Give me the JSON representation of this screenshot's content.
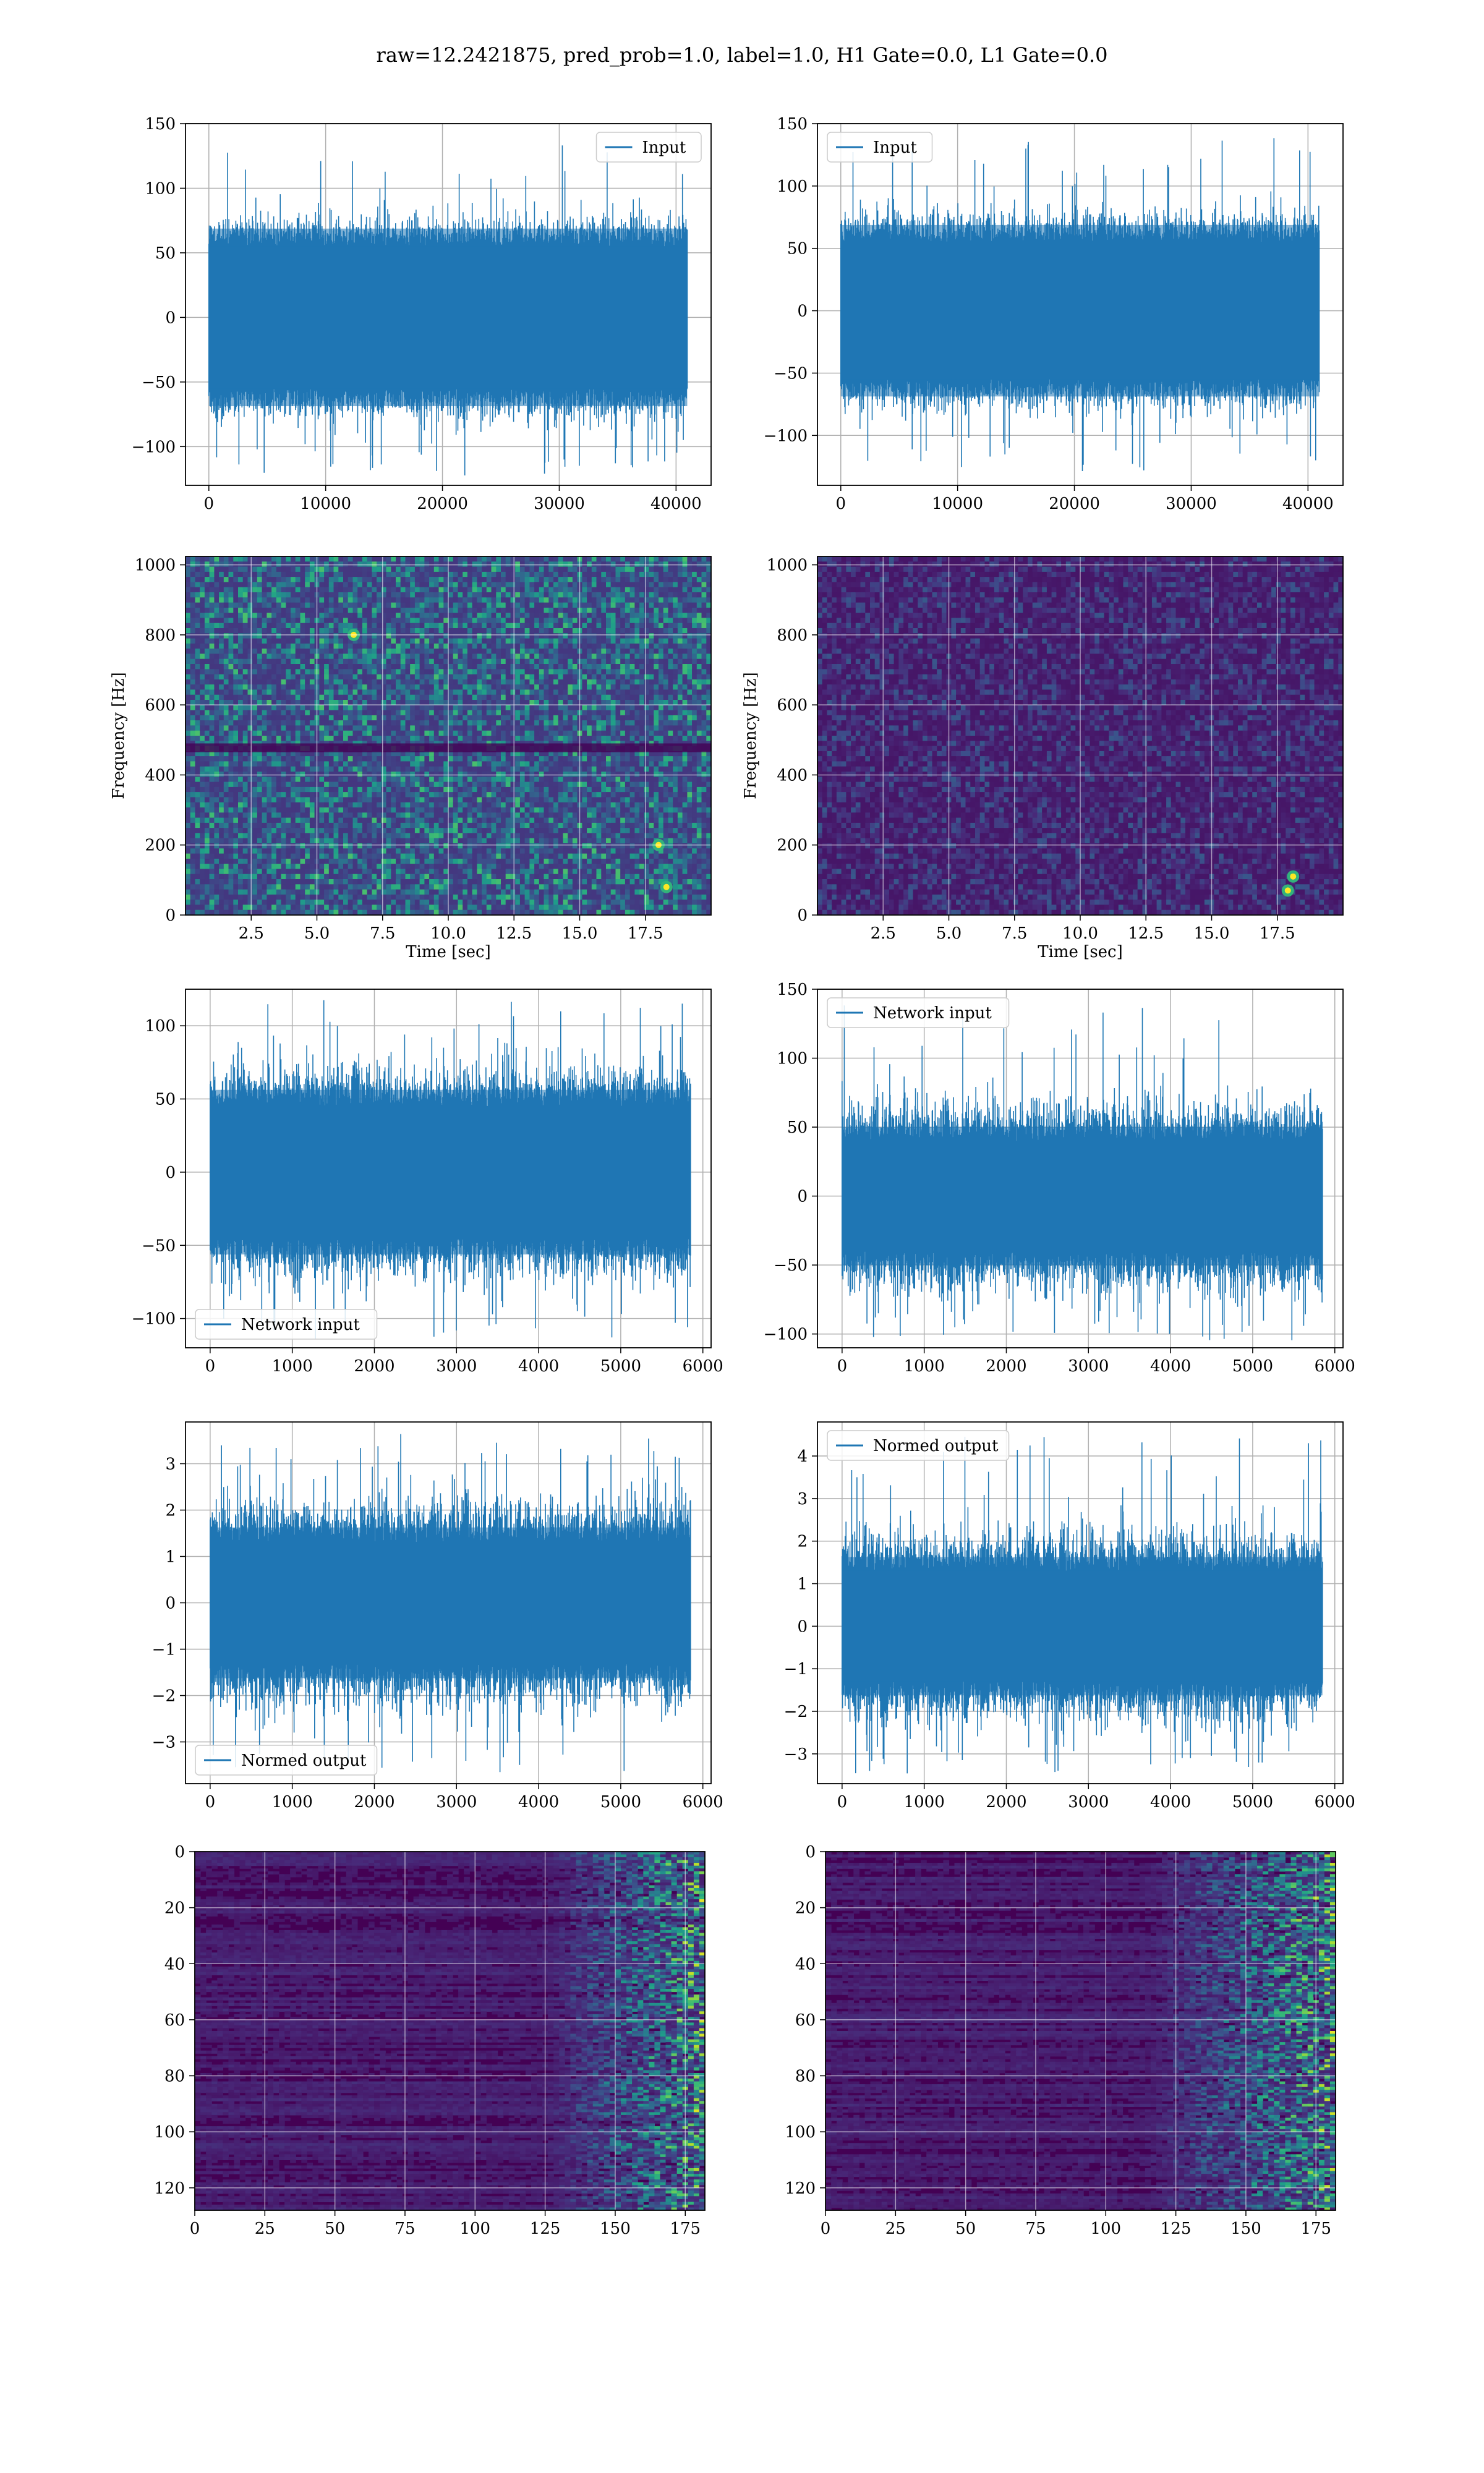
{
  "figure": {
    "suptitle": "raw=12.2421875, pred_prob=1.0, label=1.0, H1 Gate=0.0, L1 Gate=0.0"
  },
  "colors": {
    "line": "#1f77b4",
    "grid": "#b0b0b0",
    "viridis_low": "#440154",
    "viridis_mid": "#21918c",
    "viridis_high": "#fde725"
  },
  "chart_data": [
    {
      "id": "h1-input",
      "type": "line",
      "series_name": "Input",
      "legend_loc": "upper right",
      "grid": true,
      "xlim": [
        -2000,
        43000
      ],
      "ylim": [
        -130,
        150
      ],
      "xticks": [
        0,
        10000,
        20000,
        30000,
        40000
      ],
      "yticks": [
        -100,
        -50,
        0,
        50,
        100,
        150
      ],
      "x_range": [
        0,
        40960
      ],
      "envelope": [
        -85,
        85
      ],
      "core": [
        -55,
        55
      ],
      "xlabel": "",
      "ylabel": ""
    },
    {
      "id": "l1-input",
      "type": "line",
      "series_name": "Input",
      "legend_loc": "upper left",
      "grid": true,
      "xlim": [
        -2000,
        43000
      ],
      "ylim": [
        -140,
        150
      ],
      "xticks": [
        0,
        10000,
        20000,
        30000,
        40000
      ],
      "yticks": [
        -100,
        -50,
        0,
        50,
        100,
        150
      ],
      "x_range": [
        0,
        40960
      ],
      "envelope": [
        -85,
        85
      ],
      "core": [
        -55,
        55
      ],
      "xlabel": "",
      "ylabel": ""
    },
    {
      "id": "h1-spectrogram",
      "type": "heatmap",
      "xlim": [
        0,
        20
      ],
      "ylim": [
        0,
        1024
      ],
      "xticks": [
        2.5,
        5.0,
        7.5,
        10.0,
        12.5,
        15.0,
        17.5
      ],
      "yticks": [
        0,
        200,
        400,
        600,
        800,
        1000
      ],
      "xlabel": "Time [sec]",
      "ylabel": "Frequency [Hz]",
      "grid": true,
      "intensity": "medium",
      "hot_spots": [
        [
          6.4,
          800
        ],
        [
          18.3,
          80
        ],
        [
          18.0,
          200
        ]
      ]
    },
    {
      "id": "l1-spectrogram",
      "type": "heatmap",
      "xlim": [
        0,
        20
      ],
      "ylim": [
        0,
        1024
      ],
      "xticks": [
        2.5,
        5.0,
        7.5,
        10.0,
        12.5,
        15.0,
        17.5
      ],
      "yticks": [
        0,
        200,
        400,
        600,
        800,
        1000
      ],
      "xlabel": "Time [sec]",
      "ylabel": "Frequency [Hz]",
      "grid": true,
      "intensity": "low",
      "hot_spots": [
        [
          17.9,
          70
        ],
        [
          18.1,
          110
        ]
      ]
    },
    {
      "id": "h1-network-input",
      "type": "line",
      "series_name": "Network input",
      "legend_loc": "lower left",
      "grid": true,
      "xlim": [
        -300,
        6100
      ],
      "ylim": [
        -120,
        125
      ],
      "xticks": [
        0,
        1000,
        2000,
        3000,
        4000,
        5000,
        6000
      ],
      "yticks": [
        -100,
        -50,
        0,
        50,
        100
      ],
      "x_range": [
        0,
        5850
      ],
      "envelope": [
        -80,
        80
      ],
      "core": [
        -45,
        45
      ],
      "xlabel": "",
      "ylabel": ""
    },
    {
      "id": "l1-network-input",
      "type": "line",
      "series_name": "Network input",
      "legend_loc": "upper left",
      "grid": true,
      "xlim": [
        -300,
        6100
      ],
      "ylim": [
        -110,
        150
      ],
      "xticks": [
        0,
        1000,
        2000,
        3000,
        4000,
        5000,
        6000
      ],
      "yticks": [
        -100,
        -50,
        0,
        50,
        100,
        150
      ],
      "x_range": [
        0,
        5850
      ],
      "envelope": [
        -75,
        80
      ],
      "core": [
        -40,
        40
      ],
      "xlabel": "",
      "ylabel": ""
    },
    {
      "id": "h1-normed-output",
      "type": "line",
      "series_name": "Normed output",
      "legend_loc": "lower left",
      "grid": true,
      "xlim": [
        -300,
        6100
      ],
      "ylim": [
        -3.9,
        3.9
      ],
      "xticks": [
        0,
        1000,
        2000,
        3000,
        4000,
        5000,
        6000
      ],
      "yticks": [
        -3,
        -2,
        -1,
        0,
        1,
        2,
        3
      ],
      "x_range": [
        0,
        5850
      ],
      "envelope": [
        -2.5,
        2.5
      ],
      "core": [
        -1.3,
        1.3
      ],
      "xlabel": "",
      "ylabel": ""
    },
    {
      "id": "l1-normed-output",
      "type": "line",
      "series_name": "Normed output",
      "legend_loc": "upper left",
      "grid": true,
      "xlim": [
        -300,
        6100
      ],
      "ylim": [
        -3.7,
        4.8
      ],
      "xticks": [
        0,
        1000,
        2000,
        3000,
        4000,
        5000,
        6000
      ],
      "yticks": [
        -3,
        -2,
        -1,
        0,
        1,
        2,
        3,
        4
      ],
      "x_range": [
        0,
        5850
      ],
      "envelope": [
        -2.4,
        2.6
      ],
      "core": [
        -1.3,
        1.3
      ],
      "xlabel": "",
      "ylabel": ""
    },
    {
      "id": "h1-feature-map",
      "type": "heatmap",
      "xlim": [
        0,
        182
      ],
      "ylim": [
        128,
        0
      ],
      "xticks": [
        0,
        25,
        50,
        75,
        100,
        125,
        150,
        175
      ],
      "yticks": [
        0,
        20,
        40,
        60,
        80,
        100,
        120
      ],
      "xlabel": "",
      "ylabel": "",
      "grid": true,
      "activity_from": 125
    },
    {
      "id": "l1-feature-map",
      "type": "heatmap",
      "xlim": [
        0,
        182
      ],
      "ylim": [
        128,
        0
      ],
      "xticks": [
        0,
        25,
        50,
        75,
        100,
        125,
        150,
        175
      ],
      "yticks": [
        0,
        20,
        40,
        60,
        80,
        100,
        120
      ],
      "xlabel": "",
      "ylabel": "",
      "grid": true,
      "activity_from": 115
    }
  ]
}
